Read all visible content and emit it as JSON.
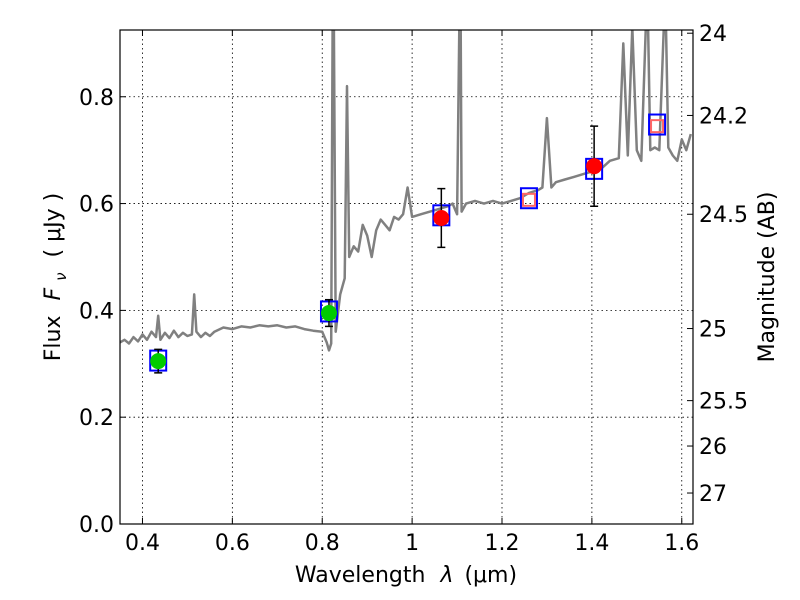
{
  "chart_data": {
    "type": "line",
    "xlabel": "Wavelength",
    "xlabel_symbol": "λ",
    "xlabel_unit": "(μm)",
    "ylabel": "Flux",
    "ylabel_symbol": "F",
    "ylabel_subscript": "ν",
    "ylabel_unit": "( μJy )",
    "y2label": "Magnitude (AB)",
    "xlim": [
      0.35,
      1.625
    ],
    "ylim": [
      0.0,
      0.925
    ],
    "xticks": [
      0.4,
      0.6,
      0.8,
      1.0,
      1.2,
      1.4,
      1.6
    ],
    "xtick_labels": [
      "0.4",
      "0.6",
      "0.8",
      "1",
      "1.2",
      "1.4",
      "1.6"
    ],
    "yticks": [
      0.0,
      0.2,
      0.4,
      0.6,
      0.8
    ],
    "ytick_labels": [
      "0.0",
      "0.2",
      "0.4",
      "0.6",
      "0.8"
    ],
    "mag_ticks": [
      {
        "label": "24",
        "flux": 0.919
      },
      {
        "label": "24.2",
        "flux": 0.765
      },
      {
        "label": "24.5",
        "flux": 0.58
      },
      {
        "label": "25",
        "flux": 0.366
      },
      {
        "label": "25.5",
        "flux": 0.231
      },
      {
        "label": "26",
        "flux": 0.146
      },
      {
        "label": "27",
        "flux": 0.058
      }
    ],
    "grid": true,
    "colors": {
      "sed": "#808080",
      "green": "#00cc00",
      "red": "#ff0000",
      "blue": "#0000ff",
      "pink": "#ff6666"
    },
    "sed_spectrum": [
      [
        0.35,
        0.34
      ],
      [
        0.36,
        0.345
      ],
      [
        0.37,
        0.338
      ],
      [
        0.38,
        0.35
      ],
      [
        0.39,
        0.342
      ],
      [
        0.4,
        0.355
      ],
      [
        0.41,
        0.345
      ],
      [
        0.42,
        0.36
      ],
      [
        0.43,
        0.35
      ],
      [
        0.435,
        0.39
      ],
      [
        0.44,
        0.345
      ],
      [
        0.45,
        0.358
      ],
      [
        0.46,
        0.348
      ],
      [
        0.47,
        0.362
      ],
      [
        0.48,
        0.35
      ],
      [
        0.49,
        0.358
      ],
      [
        0.5,
        0.352
      ],
      [
        0.51,
        0.355
      ],
      [
        0.515,
        0.43
      ],
      [
        0.52,
        0.36
      ],
      [
        0.53,
        0.35
      ],
      [
        0.54,
        0.358
      ],
      [
        0.55,
        0.352
      ],
      [
        0.56,
        0.36
      ],
      [
        0.58,
        0.368
      ],
      [
        0.6,
        0.365
      ],
      [
        0.62,
        0.37
      ],
      [
        0.64,
        0.368
      ],
      [
        0.66,
        0.372
      ],
      [
        0.68,
        0.37
      ],
      [
        0.7,
        0.372
      ],
      [
        0.72,
        0.368
      ],
      [
        0.74,
        0.37
      ],
      [
        0.76,
        0.365
      ],
      [
        0.78,
        0.362
      ],
      [
        0.8,
        0.36
      ],
      [
        0.81,
        0.34
      ],
      [
        0.815,
        0.325
      ],
      [
        0.82,
        0.338
      ],
      [
        0.823,
        0.93
      ],
      [
        0.826,
        0.93
      ],
      [
        0.83,
        0.36
      ],
      [
        0.84,
        0.43
      ],
      [
        0.85,
        0.46
      ],
      [
        0.855,
        0.82
      ],
      [
        0.86,
        0.5
      ],
      [
        0.87,
        0.52
      ],
      [
        0.88,
        0.51
      ],
      [
        0.89,
        0.56
      ],
      [
        0.9,
        0.54
      ],
      [
        0.91,
        0.5
      ],
      [
        0.92,
        0.55
      ],
      [
        0.93,
        0.57
      ],
      [
        0.94,
        0.56
      ],
      [
        0.95,
        0.55
      ],
      [
        0.96,
        0.575
      ],
      [
        0.97,
        0.57
      ],
      [
        0.98,
        0.58
      ],
      [
        0.99,
        0.63
      ],
      [
        1.0,
        0.575
      ],
      [
        1.02,
        0.58
      ],
      [
        1.04,
        0.585
      ],
      [
        1.06,
        0.59
      ],
      [
        1.08,
        0.595
      ],
      [
        1.09,
        0.6
      ],
      [
        1.1,
        0.58
      ],
      [
        1.105,
        0.93
      ],
      [
        1.108,
        0.93
      ],
      [
        1.11,
        0.585
      ],
      [
        1.12,
        0.6
      ],
      [
        1.14,
        0.605
      ],
      [
        1.16,
        0.6
      ],
      [
        1.18,
        0.605
      ],
      [
        1.2,
        0.6
      ],
      [
        1.22,
        0.605
      ],
      [
        1.24,
        0.61
      ],
      [
        1.26,
        0.62
      ],
      [
        1.28,
        0.625
      ],
      [
        1.29,
        0.63
      ],
      [
        1.3,
        0.76
      ],
      [
        1.31,
        0.63
      ],
      [
        1.32,
        0.64
      ],
      [
        1.34,
        0.645
      ],
      [
        1.36,
        0.65
      ],
      [
        1.38,
        0.655
      ],
      [
        1.4,
        0.66
      ],
      [
        1.42,
        0.665
      ],
      [
        1.44,
        0.68
      ],
      [
        1.46,
        0.685
      ],
      [
        1.47,
        0.9
      ],
      [
        1.48,
        0.69
      ],
      [
        1.49,
        0.93
      ],
      [
        1.5,
        0.7
      ],
      [
        1.51,
        0.68
      ],
      [
        1.52,
        0.93
      ],
      [
        1.525,
        0.93
      ],
      [
        1.53,
        0.7
      ],
      [
        1.54,
        0.705
      ],
      [
        1.55,
        0.7
      ],
      [
        1.56,
        0.93
      ],
      [
        1.565,
        0.93
      ],
      [
        1.57,
        0.705
      ],
      [
        1.58,
        0.69
      ],
      [
        1.59,
        0.68
      ],
      [
        1.6,
        0.72
      ],
      [
        1.61,
        0.7
      ],
      [
        1.62,
        0.73
      ]
    ],
    "model_fluxes": [
      {
        "x": 0.435,
        "y": 0.306
      },
      {
        "x": 0.815,
        "y": 0.398
      },
      {
        "x": 1.065,
        "y": 0.578
      },
      {
        "x": 1.26,
        "y": 0.61
      },
      {
        "x": 1.405,
        "y": 0.665
      },
      {
        "x": 1.545,
        "y": 0.748
      }
    ],
    "observed_detections": [
      {
        "x": 0.435,
        "y": 0.305,
        "err": 0.022,
        "color": "green"
      },
      {
        "x": 0.815,
        "y": 0.395,
        "err": 0.025,
        "color": "green"
      },
      {
        "x": 1.065,
        "y": 0.573,
        "err": 0.055,
        "color": "red"
      },
      {
        "x": 1.405,
        "y": 0.67,
        "err": 0.075,
        "color": "red"
      }
    ],
    "open_points": [
      {
        "x": 1.26,
        "y": 0.607
      },
      {
        "x": 1.545,
        "y": 0.745
      }
    ]
  }
}
